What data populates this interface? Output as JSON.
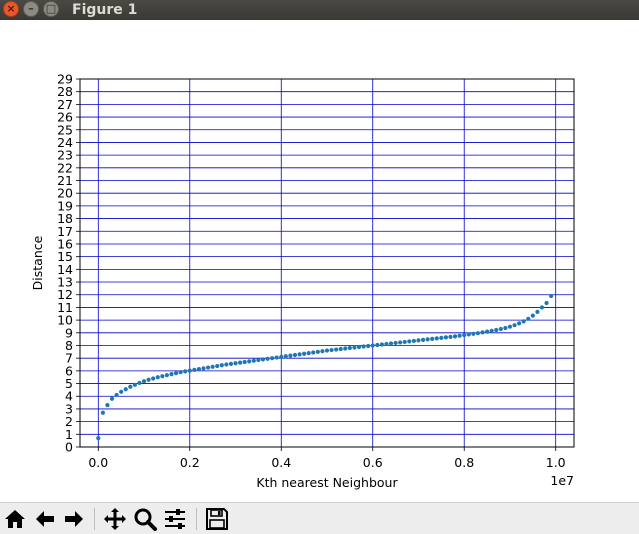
{
  "window": {
    "title": "Figure 1",
    "close_glyph": "×",
    "minimize_glyph": "–",
    "maximize_glyph": "□"
  },
  "toolbar": {
    "buttons": [
      {
        "name": "home-button",
        "icon": "home-icon"
      },
      {
        "name": "back-button",
        "icon": "arrow-left-icon"
      },
      {
        "name": "forward-button",
        "icon": "arrow-right-icon"
      },
      {
        "name": "pan-button",
        "icon": "move-icon"
      },
      {
        "name": "zoom-button",
        "icon": "magnifier-icon"
      },
      {
        "name": "configure-subplots-button",
        "icon": "sliders-icon"
      },
      {
        "name": "save-button",
        "icon": "floppy-disk-icon"
      }
    ]
  },
  "chart_data": {
    "type": "scatter",
    "xlabel": "Kth nearest Neighbour",
    "ylabel": "Distance",
    "x_offset_label": "1e7",
    "xlim": [
      -0.04,
      1.04
    ],
    "ylim": [
      0,
      29
    ],
    "x_ticks": [
      0.0,
      0.2,
      0.4,
      0.6,
      0.8,
      1.0
    ],
    "x_tick_labels": [
      "0.0",
      "0.2",
      "0.4",
      "0.6",
      "0.8",
      "1.0"
    ],
    "y_ticks": [
      0,
      1,
      2,
      3,
      4,
      5,
      6,
      7,
      8,
      9,
      10,
      11,
      12,
      13,
      14,
      15,
      16,
      17,
      18,
      19,
      20,
      21,
      22,
      23,
      24,
      25,
      26,
      27,
      28,
      29
    ],
    "y_tick_labels": [
      "0",
      "1",
      "2",
      "3",
      "4",
      "5",
      "6",
      "7",
      "8",
      "9",
      "10",
      "11",
      "12",
      "13",
      "14",
      "15",
      "16",
      "17",
      "18",
      "19",
      "20",
      "21",
      "22",
      "23",
      "24",
      "25",
      "26",
      "27",
      "28",
      "29"
    ],
    "grid": true,
    "grid_color": "#0000cc",
    "marker_color": "#1f77b4",
    "series": [
      {
        "x": [
          0.0,
          0.01,
          0.02,
          0.03,
          0.04,
          0.05,
          0.06,
          0.07,
          0.08,
          0.09,
          0.1,
          0.11,
          0.12,
          0.13,
          0.14,
          0.15,
          0.16,
          0.17,
          0.18,
          0.19,
          0.2,
          0.21,
          0.22,
          0.23,
          0.24,
          0.25,
          0.26,
          0.27,
          0.28,
          0.29,
          0.3,
          0.31,
          0.32,
          0.33,
          0.34,
          0.35,
          0.36,
          0.37,
          0.38,
          0.39,
          0.4,
          0.41,
          0.42,
          0.43,
          0.44,
          0.45,
          0.46,
          0.47,
          0.48,
          0.49,
          0.5,
          0.51,
          0.52,
          0.53,
          0.54,
          0.55,
          0.56,
          0.57,
          0.58,
          0.59,
          0.6,
          0.61,
          0.62,
          0.63,
          0.64,
          0.65,
          0.66,
          0.67,
          0.68,
          0.69,
          0.7,
          0.71,
          0.72,
          0.73,
          0.74,
          0.75,
          0.76,
          0.77,
          0.78,
          0.79,
          0.8,
          0.81,
          0.82,
          0.83,
          0.84,
          0.85,
          0.86,
          0.87,
          0.88,
          0.89,
          0.9,
          0.91,
          0.92,
          0.93,
          0.94,
          0.95,
          0.96,
          0.97,
          0.98,
          0.99
        ],
        "y": [
          0.7,
          2.7,
          3.3,
          3.8,
          4.1,
          4.35,
          4.55,
          4.75,
          4.9,
          5.05,
          5.18,
          5.3,
          5.4,
          5.5,
          5.58,
          5.66,
          5.74,
          5.82,
          5.9,
          5.96,
          6.02,
          6.08,
          6.14,
          6.2,
          6.26,
          6.32,
          6.38,
          6.44,
          6.5,
          6.55,
          6.6,
          6.65,
          6.7,
          6.75,
          6.8,
          6.85,
          6.9,
          6.95,
          7.0,
          7.05,
          7.1,
          7.15,
          7.2,
          7.25,
          7.3,
          7.35,
          7.4,
          7.45,
          7.5,
          7.55,
          7.6,
          7.64,
          7.68,
          7.72,
          7.76,
          7.8,
          7.84,
          7.88,
          7.92,
          7.96,
          8.0,
          8.04,
          8.08,
          8.12,
          8.16,
          8.2,
          8.24,
          8.28,
          8.32,
          8.36,
          8.4,
          8.44,
          8.48,
          8.52,
          8.56,
          8.6,
          8.64,
          8.68,
          8.72,
          8.77,
          8.82,
          8.87,
          8.92,
          8.97,
          9.03,
          9.09,
          9.15,
          9.22,
          9.3,
          9.38,
          9.48,
          9.6,
          9.74,
          9.9,
          10.1,
          10.35,
          10.65,
          11.0,
          11.35,
          11.9
        ]
      }
    ]
  }
}
